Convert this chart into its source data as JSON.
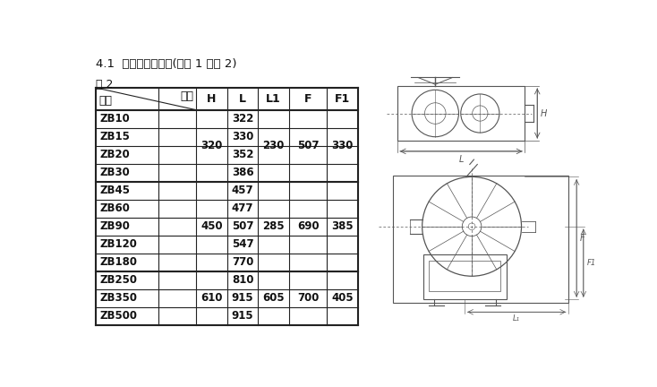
{
  "title": "4.1  外形和外形尺寸(见图 1 和表 2)",
  "table_label": "表 2",
  "col_headers": [
    "型号",
    "代号",
    "H",
    "L",
    "L1",
    "F",
    "F1"
  ],
  "model_names": [
    "ZB10",
    "ZB15",
    "ZB20",
    "ZB30",
    "ZB45",
    "ZB60",
    "ZB90",
    "ZB120",
    "ZB180",
    "ZB250",
    "ZB350",
    "ZB500"
  ],
  "L_vals": [
    "322",
    "330",
    "352",
    "386",
    "457",
    "477",
    "507",
    "547",
    "770",
    "810",
    "915",
    "915"
  ],
  "merge_H": [
    [
      0,
      3,
      "320"
    ],
    [
      4,
      8,
      "450"
    ],
    [
      9,
      11,
      "610"
    ]
  ],
  "merge_L1": [
    [
      0,
      3,
      "230"
    ],
    [
      4,
      8,
      "285"
    ],
    [
      9,
      11,
      "605"
    ]
  ],
  "merge_F": [
    [
      0,
      3,
      "507"
    ],
    [
      4,
      8,
      "690"
    ],
    [
      9,
      11,
      "700"
    ]
  ],
  "merge_F1": [
    [
      0,
      3,
      "330"
    ],
    [
      4,
      8,
      "385"
    ],
    [
      9,
      11,
      "405"
    ]
  ],
  "group_breaks": [
    4,
    9
  ],
  "bg": "#ffffff",
  "fg": "#111111",
  "lc": "#222222",
  "draw_color": "#555555"
}
